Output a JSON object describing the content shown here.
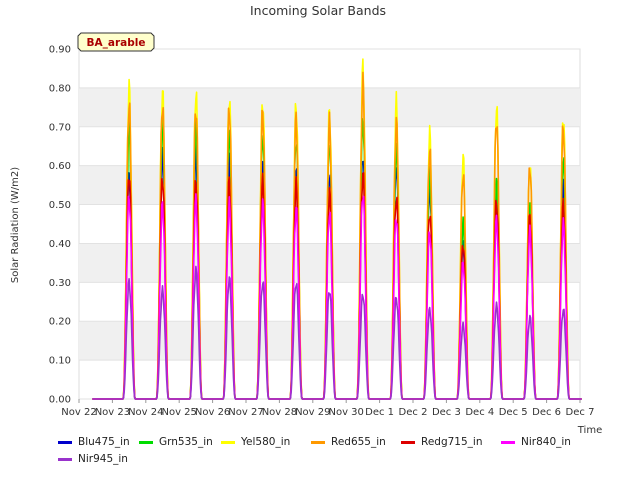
{
  "chart_data": {
    "type": "line",
    "title": "Incoming Solar Bands",
    "xlabel": "Time",
    "ylabel": "Solar Radiation (W/m2)",
    "ylim": [
      0,
      0.9
    ],
    "yticks": [
      "0.00",
      "0.10",
      "0.20",
      "0.30",
      "0.40",
      "0.50",
      "0.60",
      "0.70",
      "0.80",
      "0.90"
    ],
    "xticks": [
      "Nov 22",
      "Nov 23",
      "Nov 24",
      "Nov 25",
      "Nov 26",
      "Nov 27",
      "Nov 28",
      "Nov 29",
      "Nov 30",
      "Dec 1",
      "Dec 2",
      "Dec 3",
      "Dec 4",
      "Dec 5",
      "Dec 6",
      "Dec 7"
    ],
    "grid": "horizontal bands",
    "annotation": "BA_arable",
    "days": [
      "Nov 23",
      "Nov 24",
      "Nov 25",
      "Nov 26",
      "Nov 27",
      "Nov 28",
      "Nov 29",
      "Nov 30",
      "Dec 1",
      "Dec 2",
      "Dec 3",
      "Dec 4",
      "Dec 5",
      "Dec 6"
    ],
    "series": [
      {
        "name": "Blu475_in",
        "color": "#0000cc",
        "daily_peak": [
          0.58,
          0.63,
          0.63,
          0.61,
          0.6,
          0.59,
          0.58,
          0.63,
          0.6,
          0.54,
          0.4,
          0.51,
          0.47,
          0.55
        ]
      },
      {
        "name": "Grn535_in",
        "color": "#00dd00",
        "daily_peak": [
          0.7,
          0.71,
          0.7,
          0.69,
          0.68,
          0.67,
          0.66,
          0.72,
          0.65,
          0.58,
          0.45,
          0.55,
          0.5,
          0.62
        ]
      },
      {
        "name": "Yel580_in",
        "color": "#ffff00",
        "daily_peak": [
          0.8,
          0.79,
          0.79,
          0.78,
          0.77,
          0.76,
          0.74,
          0.85,
          0.76,
          0.68,
          0.62,
          0.75,
          0.6,
          0.73
        ]
      },
      {
        "name": "Red655_in",
        "color": "#ff9900",
        "daily_peak": [
          0.76,
          0.76,
          0.75,
          0.75,
          0.74,
          0.72,
          0.71,
          0.81,
          0.71,
          0.64,
          0.58,
          0.72,
          0.6,
          0.7
        ]
      },
      {
        "name": "Redg715_in",
        "color": "#dd0000",
        "daily_peak": [
          0.58,
          0.57,
          0.56,
          0.56,
          0.56,
          0.55,
          0.53,
          0.58,
          0.52,
          0.48,
          0.4,
          0.51,
          0.47,
          0.5
        ]
      },
      {
        "name": "Nir840_in",
        "color": "#ff00ff",
        "daily_peak": [
          0.52,
          0.5,
          0.51,
          0.5,
          0.5,
          0.49,
          0.48,
          0.53,
          0.47,
          0.43,
          0.35,
          0.46,
          0.43,
          0.45
        ]
      },
      {
        "name": "Nir945_in",
        "color": "#9933cc",
        "daily_peak": [
          0.3,
          0.28,
          0.33,
          0.31,
          0.3,
          0.3,
          0.28,
          0.27,
          0.26,
          0.23,
          0.19,
          0.24,
          0.21,
          0.23
        ]
      }
    ]
  }
}
